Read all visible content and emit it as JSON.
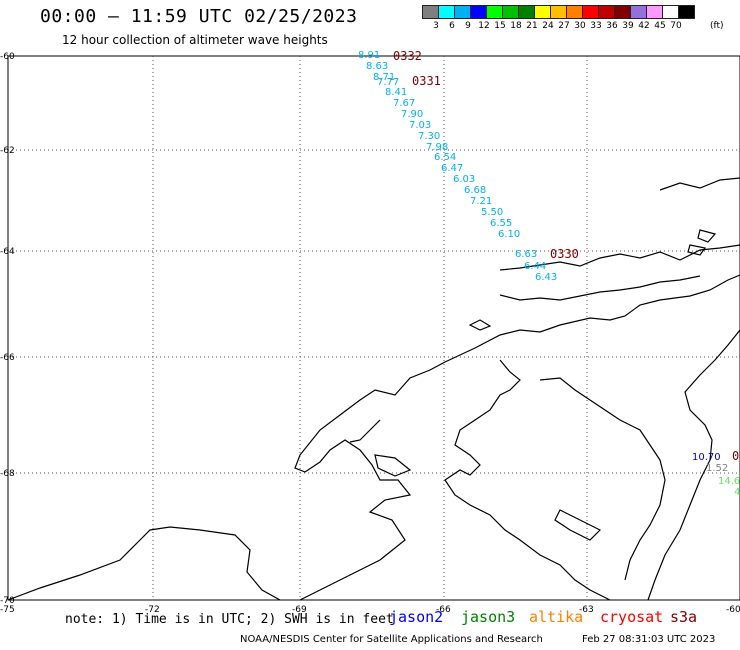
{
  "header": {
    "title": "00:00 – 11:59 UTC 02/25/2023",
    "subtitle": "12 hour collection of altimeter wave heights"
  },
  "colorbar": {
    "colors": [
      "#7f7f7f",
      "#00ffff",
      "#00b0f0",
      "#0000ff",
      "#00ff00",
      "#00c000",
      "#008000",
      "#ffff00",
      "#ffc000",
      "#ff8000",
      "#ff0000",
      "#c00000",
      "#800000",
      "#9370db",
      "#ff99ff",
      "#ffffff",
      "#000000"
    ],
    "labels": [
      "3",
      "6",
      "9",
      "12",
      "15",
      "18",
      "21",
      "24",
      "27",
      "30",
      "33",
      "36",
      "39",
      "42",
      "45",
      "70"
    ],
    "unit": "(ft)"
  },
  "axes": {
    "lat_labels": [
      "-60",
      "-62",
      "-64",
      "-66",
      "-68",
      "-70"
    ],
    "lon_labels": [
      "-75",
      "-72",
      "-69",
      "-66",
      "-63",
      "-60"
    ]
  },
  "track_times": [
    {
      "text": "0332",
      "color": "#800000"
    },
    {
      "text": "0331",
      "color": "#800000"
    },
    {
      "text": "0330",
      "color": "#800000"
    },
    {
      "text": "0",
      "color": "#800000"
    }
  ],
  "wave_heights": [
    {
      "text": "8.91",
      "color": "#00b0f0"
    },
    {
      "text": "8.63",
      "color": "#00b0f0"
    },
    {
      "text": "8.71",
      "color": "#00b0f0"
    },
    {
      "text": "7.77",
      "color": "#00b0f0"
    },
    {
      "text": "8.41",
      "color": "#00b0f0"
    },
    {
      "text": "7.67",
      "color": "#00b0f0"
    },
    {
      "text": "7.90",
      "color": "#00b0f0"
    },
    {
      "text": "7.03",
      "color": "#00b0f0"
    },
    {
      "text": "7.30",
      "color": "#00b0f0"
    },
    {
      "text": "7.98",
      "color": "#00b0f0"
    },
    {
      "text": "6.54",
      "color": "#00b0f0"
    },
    {
      "text": "6.47",
      "color": "#00b0f0"
    },
    {
      "text": "6.03",
      "color": "#00b0f0"
    },
    {
      "text": "6.68",
      "color": "#00b0f0"
    },
    {
      "text": "7.21",
      "color": "#00b0f0"
    },
    {
      "text": "5.50",
      "color": "#00b0f0"
    },
    {
      "text": "6.55",
      "color": "#00b0f0"
    },
    {
      "text": "6.10",
      "color": "#00b0f0"
    },
    {
      "text": "6.63",
      "color": "#00b0f0"
    },
    {
      "text": "6.44",
      "color": "#00b0f0"
    },
    {
      "text": "6.43",
      "color": "#00b0f0"
    },
    {
      "text": "10.70",
      "color": "#0000c0"
    },
    {
      "text": "1.52",
      "color": "#808080"
    },
    {
      "text": "14.6",
      "color": "#66dd66"
    },
    {
      "text": "4",
      "color": "#66dd66"
    }
  ],
  "footer": {
    "note": "note: 1) Time is in UTC; 2) SWH is in feet",
    "legend": [
      {
        "name": "jason2",
        "color": "#0000ff"
      },
      {
        "name": "jason3",
        "color": "#008000"
      },
      {
        "name": "altika",
        "color": "#ff8000"
      },
      {
        "name": "cryosat",
        "color": "#ff0000"
      },
      {
        "name": "s3a",
        "color": "#800000"
      }
    ],
    "credit": "NOAA/NESDIS Center for Satellite Applications and Research",
    "timestamp": "Feb 27 08:31:03 UTC 2023"
  }
}
